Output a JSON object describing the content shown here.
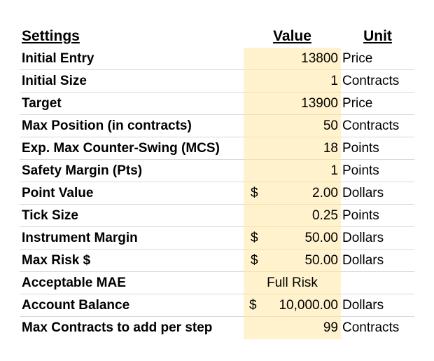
{
  "header": {
    "settings": "Settings",
    "value": "Value",
    "unit": "Unit"
  },
  "rows": [
    {
      "setting": "Initial Entry",
      "currency": "",
      "value": "13800",
      "unit": "Price"
    },
    {
      "setting": "Initial Size",
      "currency": "",
      "value": "1",
      "unit": "Contracts"
    },
    {
      "setting": "Target",
      "currency": "",
      "value": "13900",
      "unit": "Price"
    },
    {
      "setting": "Max Position (in contracts)",
      "currency": "",
      "value": "50",
      "unit": "Contracts"
    },
    {
      "setting": "Exp. Max Counter-Swing (MCS)",
      "currency": "",
      "value": "18",
      "unit": "Points"
    },
    {
      "setting": "Safety Margin (Pts)",
      "currency": "",
      "value": "1",
      "unit": "Points"
    },
    {
      "setting": "Point Value",
      "currency": "$",
      "value": "2.00",
      "unit": "Dollars"
    },
    {
      "setting": "Tick Size",
      "currency": "",
      "value": "0.25",
      "unit": "Points"
    },
    {
      "setting": "Instrument Margin",
      "currency": "$",
      "value": "50.00",
      "unit": "Dollars"
    },
    {
      "setting": "Max Risk $",
      "currency": "$",
      "value": "50.00",
      "unit": "Dollars"
    },
    {
      "setting": "Acceptable MAE",
      "currency": "",
      "value": "Full Risk",
      "unit": ""
    },
    {
      "setting": "Account Balance",
      "currency": "$",
      "value": "10,000.00",
      "unit": "Dollars"
    },
    {
      "setting": "Max Contracts to add per step",
      "currency": "",
      "value": "99",
      "unit": "Contracts"
    }
  ],
  "colors": {
    "value_column_fill": "#fff2cc",
    "gridline": "#d9d9d9"
  }
}
